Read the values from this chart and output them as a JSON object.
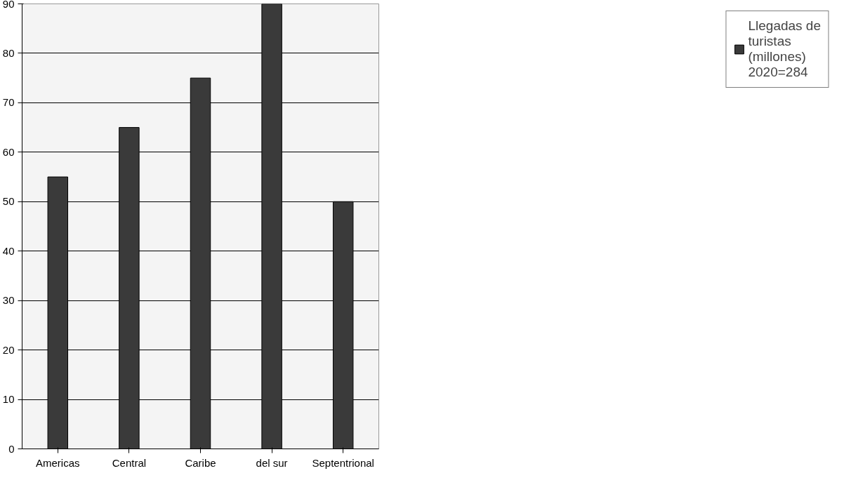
{
  "chart_data": {
    "type": "bar",
    "categories": [
      "Americas",
      "Central",
      "Caribe",
      "del sur",
      "Septentrional"
    ],
    "series": [
      {
        "name": "Llegadas de turistas (millones) 2020=284",
        "color": "#3a3a3a",
        "values": [
          55,
          65,
          75,
          90,
          50
        ]
      }
    ],
    "ylim": [
      0,
      90
    ],
    "yticks": [
      0,
      10,
      20,
      30,
      40,
      50,
      60,
      70,
      80,
      90
    ],
    "grid": "y",
    "legend": "right"
  }
}
